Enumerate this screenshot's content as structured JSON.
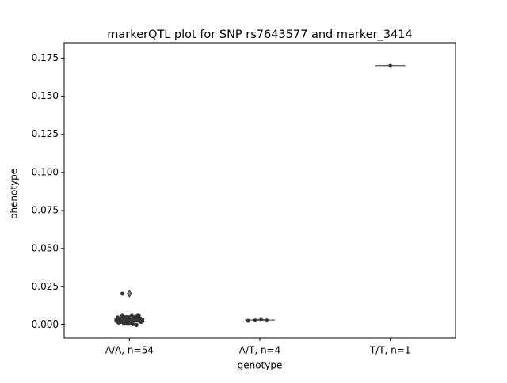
{
  "chart_data": {
    "type": "box",
    "title": "markerQTL plot for SNP rs7643577 and marker_3414",
    "x_label": "genotype",
    "y_label": "phenotype",
    "categories": [
      "A/A, n=54",
      "A/T, n=4",
      "T/T, n=1"
    ],
    "boxes": [
      {
        "q1": 0.002,
        "median": 0.003,
        "q3": 0.004,
        "whislo": 0.0,
        "whishi": 0.006,
        "fliers": [
          0.0205
        ]
      },
      {
        "q1": 0.0029,
        "median": 0.003,
        "q3": 0.0032,
        "whislo": 0.0028,
        "whishi": 0.0034,
        "fliers": []
      },
      {
        "q1": 0.17,
        "median": 0.17,
        "q3": 0.17,
        "whislo": 0.17,
        "whishi": 0.17,
        "fliers": []
      }
    ],
    "points": [
      [
        0.003,
        0.004,
        0.002,
        0.005,
        0.001,
        0.003,
        0.006,
        0.002,
        0.004,
        0.003,
        0.0005,
        0.005,
        0.002,
        0.004,
        0.003,
        0.001,
        0.006,
        0.002,
        0.003,
        0.004,
        0.005,
        0.002,
        0.0,
        0.003,
        0.004,
        0.001,
        0.005,
        0.003,
        0.002,
        0.004,
        0.006,
        0.003,
        0.001,
        0.002,
        0.004,
        0.005,
        0.003,
        0.0205,
        0.002,
        0.004,
        0.003,
        0.001,
        0.005,
        0.0,
        0.003,
        0.004,
        0.002,
        0.006,
        0.003,
        0.004,
        0.002,
        0.005,
        0.003,
        0.001
      ],
      [
        0.0028,
        0.003,
        0.0034,
        0.003
      ],
      [
        0.17
      ]
    ],
    "box_color": "#808080",
    "line_color": "#3f3f3f",
    "point_color": "#333333",
    "ylim": [
      -0.0086,
      0.1851
    ],
    "yticks": [
      {
        "value": 0,
        "label": "0.000"
      },
      {
        "value": 0.025,
        "label": "0.025"
      },
      {
        "value": 0.05,
        "label": "0.050"
      },
      {
        "value": 0.075,
        "label": "0.075"
      },
      {
        "value": 0.1,
        "label": "0.100"
      },
      {
        "value": 0.125,
        "label": "0.125"
      },
      {
        "value": 0.15,
        "label": "0.150"
      },
      {
        "value": 0.175,
        "label": "0.175"
      }
    ]
  }
}
